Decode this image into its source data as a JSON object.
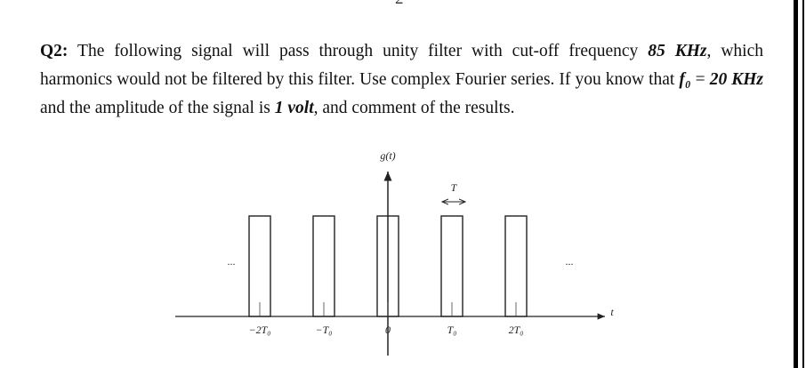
{
  "page_number": "2",
  "question": {
    "segments": [
      "Q2:",
      " The following signal will pass through unity filter with cut-off frequency ",
      "85 KHz",
      ", which harmonics would not be filtered by this filter. Use complex Fourier series. If you know that ",
      "f₀",
      " = ",
      "20 KHz",
      " and the amplitude of the signal is ",
      "1 volt",
      ", and comment of the results."
    ]
  },
  "figure": {
    "y_axis_label": "g(t)",
    "x_axis_label": "t",
    "width_label": "T",
    "left_ellipsis": "...",
    "right_ellipsis": "...",
    "tick_labels": [
      "−2T₀",
      "−T₀",
      "0",
      "T₀",
      "2T₀"
    ]
  }
}
